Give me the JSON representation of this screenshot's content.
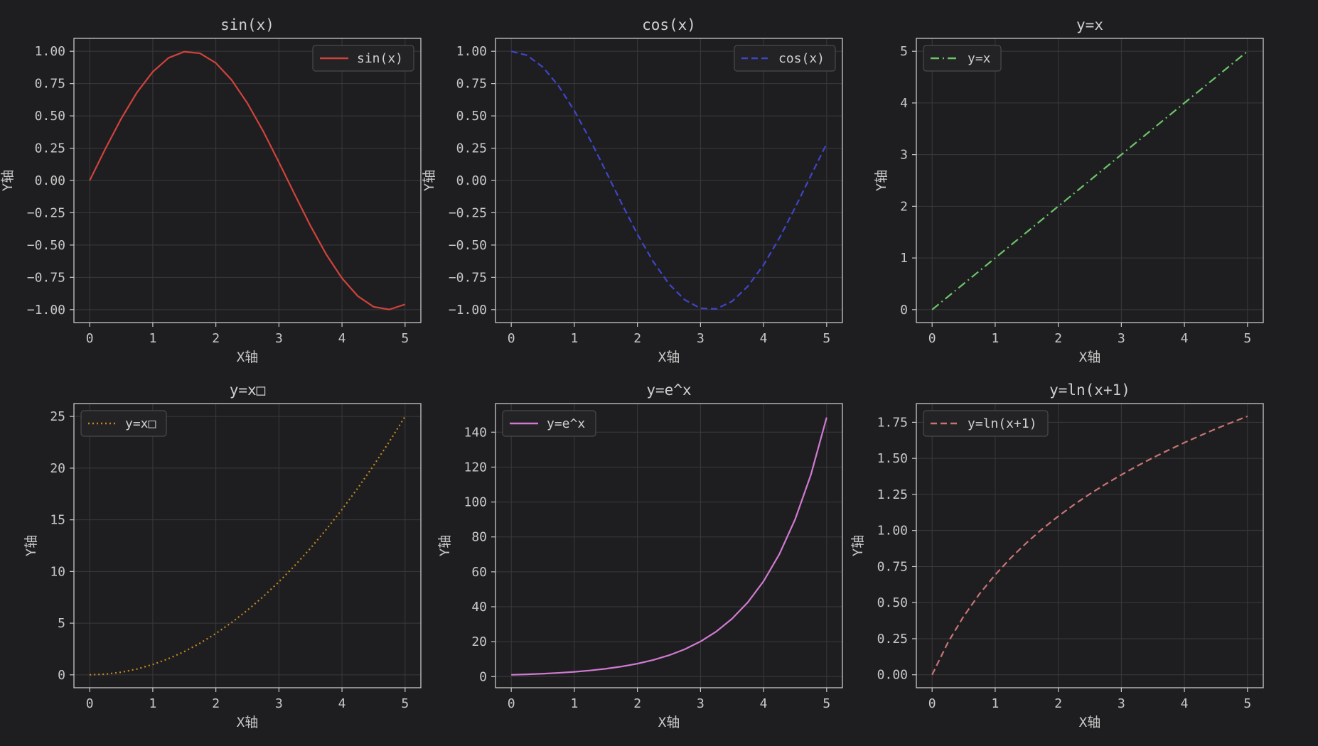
{
  "figure": {
    "background": "#1e1e20",
    "axes_color": "#c8c8c8",
    "grid_color": "#3a3a3c"
  },
  "chart_data": [
    {
      "type": "line",
      "title": "sin(x)",
      "xlabel": "X轴",
      "ylabel": "Y轴",
      "xlim": [
        -0.25,
        5.25
      ],
      "ylim": [
        -1.1,
        1.1
      ],
      "xticks": [
        0,
        1,
        2,
        3,
        4,
        5
      ],
      "yticks": [
        -1.0,
        -0.75,
        -0.5,
        -0.25,
        0.0,
        0.25,
        0.5,
        0.75,
        1.0
      ],
      "ytick_labels": [
        "−1.00",
        "−0.75",
        "−0.50",
        "−0.25",
        "0.00",
        "0.25",
        "0.50",
        "0.75",
        "1.00"
      ],
      "grid": true,
      "legend_position": "upper right",
      "series": [
        {
          "name": "sin(x)",
          "color": "#d0423d",
          "linestyle": "solid",
          "x": [
            0,
            0.25,
            0.5,
            0.75,
            1,
            1.25,
            1.5,
            1.75,
            2,
            2.25,
            2.5,
            2.75,
            3,
            3.25,
            3.5,
            3.75,
            4,
            4.25,
            4.5,
            4.75,
            5
          ],
          "y": [
            0,
            0.247,
            0.479,
            0.682,
            0.841,
            0.949,
            0.997,
            0.984,
            0.909,
            0.778,
            0.598,
            0.382,
            0.141,
            -0.108,
            -0.351,
            -0.572,
            -0.757,
            -0.895,
            -0.978,
            -0.999,
            -0.959
          ]
        }
      ]
    },
    {
      "type": "line",
      "title": "cos(x)",
      "xlabel": "X轴",
      "ylabel": "Y轴",
      "xlim": [
        -0.25,
        5.25
      ],
      "ylim": [
        -1.1,
        1.1
      ],
      "xticks": [
        0,
        1,
        2,
        3,
        4,
        5
      ],
      "yticks": [
        -1.0,
        -0.75,
        -0.5,
        -0.25,
        0.0,
        0.25,
        0.5,
        0.75,
        1.0
      ],
      "ytick_labels": [
        "−1.00",
        "−0.75",
        "−0.50",
        "−0.25",
        "0.00",
        "0.25",
        "0.50",
        "0.75",
        "1.00"
      ],
      "grid": true,
      "legend_position": "upper right",
      "series": [
        {
          "name": "cos(x)",
          "color": "#3f45c9",
          "linestyle": "dashed",
          "x": [
            0,
            0.25,
            0.5,
            0.75,
            1,
            1.25,
            1.5,
            1.75,
            2,
            2.25,
            2.5,
            2.75,
            3,
            3.25,
            3.5,
            3.75,
            4,
            4.25,
            4.5,
            4.75,
            5
          ],
          "y": [
            1,
            0.969,
            0.878,
            0.732,
            0.54,
            0.315,
            0.071,
            -0.178,
            -0.416,
            -0.628,
            -0.801,
            -0.924,
            -0.99,
            -0.994,
            -0.936,
            -0.82,
            -0.654,
            -0.446,
            -0.211,
            0.038,
            0.284
          ]
        }
      ]
    },
    {
      "type": "line",
      "title": "y=x",
      "xlabel": "X轴",
      "ylabel": "Y轴",
      "xlim": [
        -0.25,
        5.25
      ],
      "ylim": [
        -0.25,
        5.25
      ],
      "xticks": [
        0,
        1,
        2,
        3,
        4,
        5
      ],
      "yticks": [
        0,
        1,
        2,
        3,
        4,
        5
      ],
      "ytick_labels": [
        "0",
        "1",
        "2",
        "3",
        "4",
        "5"
      ],
      "grid": true,
      "legend_position": "upper left",
      "series": [
        {
          "name": "y=x",
          "color": "#6cc46a",
          "linestyle": "dashdot",
          "x": [
            0,
            5
          ],
          "y": [
            0,
            5
          ]
        }
      ]
    },
    {
      "type": "line",
      "title": "y=x□",
      "xlabel": "X轴",
      "ylabel": "Y轴",
      "xlim": [
        -0.25,
        5.25
      ],
      "ylim": [
        -1.25,
        26.25
      ],
      "xticks": [
        0,
        1,
        2,
        3,
        4,
        5
      ],
      "yticks": [
        0,
        5,
        10,
        15,
        20,
        25
      ],
      "ytick_labels": [
        "0",
        "5",
        "10",
        "15",
        "20",
        "25"
      ],
      "grid": true,
      "legend_position": "upper left",
      "series": [
        {
          "name": "y=x□",
          "color": "#c58a1e",
          "linestyle": "dotted",
          "x": [
            0,
            0.25,
            0.5,
            0.75,
            1,
            1.25,
            1.5,
            1.75,
            2,
            2.25,
            2.5,
            2.75,
            3,
            3.25,
            3.5,
            3.75,
            4,
            4.25,
            4.5,
            4.75,
            5
          ],
          "y": [
            0,
            0.0625,
            0.25,
            0.5625,
            1,
            1.5625,
            2.25,
            3.0625,
            4,
            5.0625,
            6.25,
            7.5625,
            9,
            10.5625,
            12.25,
            14.0625,
            16,
            18.0625,
            20.25,
            22.5625,
            25
          ]
        }
      ]
    },
    {
      "type": "line",
      "title": "y=e^x",
      "xlabel": "X轴",
      "ylabel": "Y轴",
      "xlim": [
        -0.25,
        5.25
      ],
      "ylim": [
        -6.4,
        156.4
      ],
      "xticks": [
        0,
        1,
        2,
        3,
        4,
        5
      ],
      "yticks": [
        0,
        20,
        40,
        60,
        80,
        100,
        120,
        140
      ],
      "ytick_labels": [
        "0",
        "20",
        "40",
        "60",
        "80",
        "100",
        "120",
        "140"
      ],
      "grid": true,
      "legend_position": "upper left",
      "series": [
        {
          "name": "y=e^x",
          "color": "#d17ad1",
          "linestyle": "solid",
          "x": [
            0,
            0.25,
            0.5,
            0.75,
            1,
            1.25,
            1.5,
            1.75,
            2,
            2.25,
            2.5,
            2.75,
            3,
            3.25,
            3.5,
            3.75,
            4,
            4.25,
            4.5,
            4.75,
            5
          ],
          "y": [
            1,
            1.284,
            1.649,
            2.117,
            2.718,
            3.49,
            4.482,
            5.755,
            7.389,
            9.488,
            12.182,
            15.643,
            20.086,
            25.79,
            33.115,
            42.521,
            54.598,
            70.105,
            90.017,
            115.584,
            148.413
          ]
        }
      ]
    },
    {
      "type": "line",
      "title": "y=ln(x+1)",
      "xlabel": "X轴",
      "ylabel": "Y轴",
      "xlim": [
        -0.25,
        5.25
      ],
      "ylim": [
        -0.09,
        1.88
      ],
      "xticks": [
        0,
        1,
        2,
        3,
        4,
        5
      ],
      "yticks": [
        0,
        0.25,
        0.5,
        0.75,
        1.0,
        1.25,
        1.5,
        1.75
      ],
      "ytick_labels": [
        "0.00",
        "0.25",
        "0.50",
        "0.75",
        "1.00",
        "1.25",
        "1.50",
        "1.75"
      ],
      "grid": true,
      "legend_position": "upper left",
      "series": [
        {
          "name": "y=ln(x+1)",
          "color": "#c87474",
          "linestyle": "dashed",
          "x": [
            0,
            0.25,
            0.5,
            0.75,
            1,
            1.25,
            1.5,
            1.75,
            2,
            2.25,
            2.5,
            2.75,
            3,
            3.25,
            3.5,
            3.75,
            4,
            4.25,
            4.5,
            4.75,
            5
          ],
          "y": [
            0,
            0.223,
            0.405,
            0.56,
            0.693,
            0.811,
            0.916,
            1.012,
            1.099,
            1.179,
            1.253,
            1.322,
            1.386,
            1.447,
            1.504,
            1.558,
            1.609,
            1.658,
            1.705,
            1.749,
            1.792
          ]
        }
      ]
    }
  ]
}
